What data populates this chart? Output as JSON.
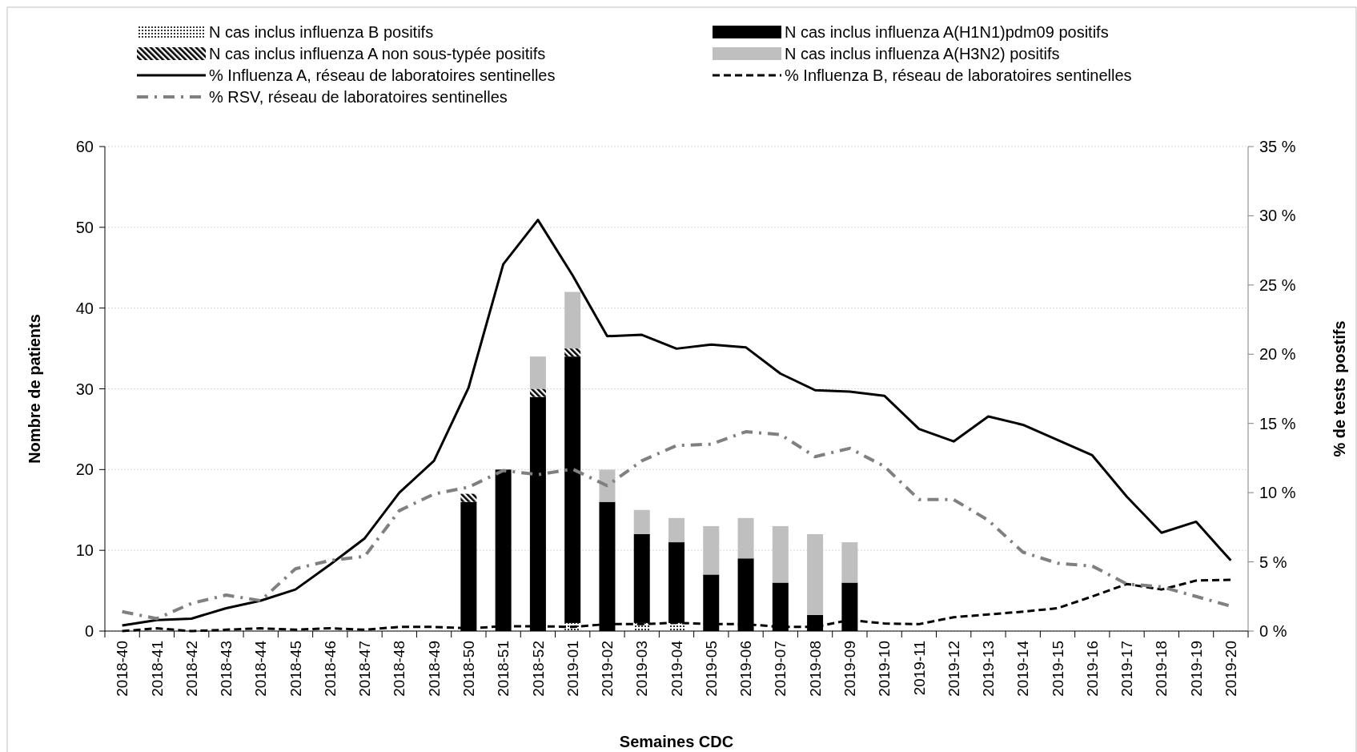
{
  "chart_data": {
    "type": "bar",
    "stacked": true,
    "categories": [
      "2018-40",
      "2018-41",
      "2018-42",
      "2018-43",
      "2018-44",
      "2018-45",
      "2018-46",
      "2018-47",
      "2018-48",
      "2018-49",
      "2018-50",
      "2018-51",
      "2018-52",
      "2019-01",
      "2019-02",
      "2019-03",
      "2019-04",
      "2019-05",
      "2019-06",
      "2019-07",
      "2019-08",
      "2019-09",
      "2019-10",
      "2019-11",
      "2019-12",
      "2019-13",
      "2019-14",
      "2019-15",
      "2019-16",
      "2019-17",
      "2019-18",
      "2019-19",
      "2019-20"
    ],
    "series": [
      {
        "name": "N cas inclus influenza B positifs",
        "color": "#000000",
        "values": [
          0,
          0,
          0,
          0,
          0,
          0,
          0,
          0,
          0,
          0,
          0,
          0,
          0,
          1,
          0,
          1,
          1,
          0,
          0,
          0,
          0,
          0,
          0,
          0,
          0,
          0,
          0,
          0,
          0,
          0,
          0,
          0,
          0
        ]
      },
      {
        "name": "N cas inclus influenza A(H1N1)pdm09 positifs",
        "color": "#000000",
        "values": [
          0,
          0,
          0,
          0,
          0,
          0,
          0,
          0,
          0,
          0,
          16,
          20,
          29,
          33,
          16,
          11,
          10,
          7,
          9,
          6,
          2,
          6,
          0,
          0,
          0,
          0,
          0,
          0,
          0,
          0,
          0,
          0,
          0
        ]
      },
      {
        "name": "N cas inclus influenza A non sous-typée positifs",
        "color": "#000000",
        "values": [
          0,
          0,
          0,
          0,
          0,
          0,
          0,
          0,
          0,
          0,
          1,
          0,
          1,
          1,
          0,
          0,
          0,
          0,
          0,
          0,
          0,
          0,
          0,
          0,
          0,
          0,
          0,
          0,
          0,
          0,
          0,
          0,
          0
        ]
      },
      {
        "name": "N cas inclus influenza A(H3N2) positifs",
        "color": "#bfbfbf",
        "values": [
          0,
          0,
          0,
          0,
          0,
          0,
          0,
          0,
          0,
          0,
          0,
          0,
          4,
          7,
          4,
          3,
          3,
          6,
          5,
          7,
          10,
          5,
          0,
          0,
          0,
          0,
          0,
          0,
          0,
          0,
          0,
          0,
          0
        ]
      },
      {
        "name": "% Influenza A, réseau de laboratoires sentinelles",
        "type": "line",
        "axis": "y2",
        "color": "#000000",
        "line_style": "solid",
        "values": [
          0.4,
          0.8,
          0.9,
          1.65,
          2.2,
          3.0,
          4.8,
          6.7,
          10.0,
          12.3,
          17.6,
          26.5,
          29.7,
          25.7,
          21.3,
          21.4,
          20.4,
          20.7,
          20.5,
          18.6,
          17.4,
          17.3,
          17.0,
          14.6,
          13.7,
          15.5,
          14.9,
          13.8,
          12.7,
          9.7,
          7.1,
          7.9,
          5.1
        ]
      },
      {
        "name": "% Influenza B, réseau de laboratoires sentinelles",
        "type": "line",
        "axis": "y2",
        "color": "#000000",
        "line_style": "dashed",
        "values": [
          0,
          0.2,
          0,
          0.1,
          0.2,
          0.1,
          0.2,
          0.1,
          0.3,
          0.3,
          0.2,
          0.35,
          0.35,
          0.3,
          0.5,
          0.5,
          0.6,
          0.5,
          0.5,
          0.3,
          0.3,
          0.8,
          0.55,
          0.5,
          1.0,
          1.2,
          1.4,
          1.65,
          2.5,
          3.4,
          3.0,
          3.65,
          3.7
        ]
      },
      {
        "name": "% RSV, réseau de laboratoires sentinelles",
        "type": "line",
        "axis": "y2",
        "color": "#808080",
        "line_style": "dashed",
        "values": [
          1.4,
          0.9,
          2.0,
          2.6,
          2.2,
          4.5,
          5.1,
          5.4,
          8.7,
          9.9,
          10.4,
          11.6,
          11.3,
          11.7,
          10.5,
          12.3,
          13.4,
          13.5,
          14.4,
          14.2,
          12.6,
          13.2,
          11.9,
          9.5,
          9.5,
          8.0,
          5.7,
          4.9,
          4.7,
          3.4,
          3.2,
          2.5,
          1.8
        ]
      }
    ],
    "ylim": [
      0,
      60
    ],
    "yticks": [
      0,
      10,
      20,
      30,
      40,
      50,
      60
    ],
    "y2lim": [
      0,
      35
    ],
    "y2ticks": [
      {
        "value": 0,
        "label": "0 %"
      },
      {
        "value": 5,
        "label": "5 %"
      },
      {
        "value": 10,
        "label": "10 %"
      },
      {
        "value": 15,
        "label": "15 %"
      },
      {
        "value": 20,
        "label": "20 %"
      },
      {
        "value": 25,
        "label": "25 %"
      },
      {
        "value": 30,
        "label": "30 %"
      },
      {
        "value": 35,
        "label": "35 %"
      }
    ],
    "xlabel": "Semaines CDC",
    "ylabel": "Nombre de patients",
    "y2label": "% de tests postifs",
    "grid": "y",
    "legend": "top"
  }
}
